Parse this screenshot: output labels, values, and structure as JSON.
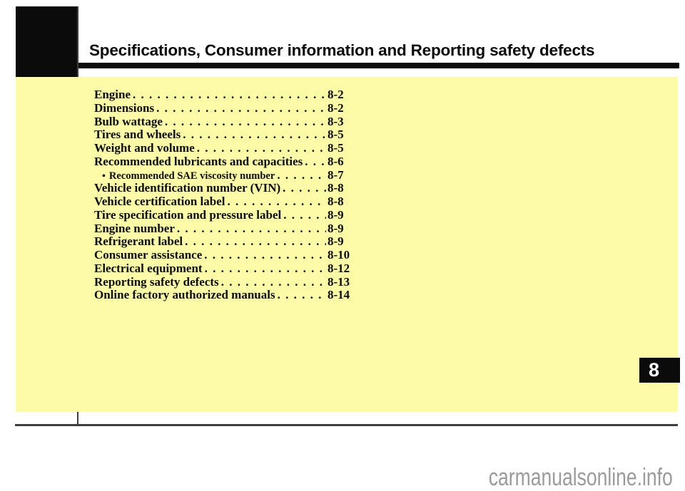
{
  "header": {
    "title": "Specifications, Consumer information and Reporting safety defects",
    "chapter_number": "8"
  },
  "toc": {
    "items": [
      {
        "label": "Engine",
        "page": "8-2"
      },
      {
        "label": "Dimensions",
        "page": "8-2"
      },
      {
        "label": "Bulb wattage",
        "page": "8-3"
      },
      {
        "label": "Tires and wheels",
        "page": "8-5"
      },
      {
        "label": "Weight and volume",
        "page": "8-5"
      },
      {
        "label": "Recommended lubricants and capacities",
        "page": "8-6"
      },
      {
        "label": "Recommended SAE viscosity number",
        "page": "8-7",
        "sub": true,
        "marker": "•"
      },
      {
        "label": "Vehicle identification number (VIN)",
        "page": "8-8"
      },
      {
        "label": "Vehicle certification label",
        "page": "8-8"
      },
      {
        "label": "Tire specification and pressure label",
        "page": "8-9"
      },
      {
        "label": "Engine number",
        "page": "8-9"
      },
      {
        "label": "Refrigerant label",
        "page": "8-9"
      },
      {
        "label": "Consumer assistance",
        "page": "8-10"
      },
      {
        "label": "Electrical equipment",
        "page": "8-12"
      },
      {
        "label": "Reporting safety defects",
        "page": "8-13"
      },
      {
        "label": "Online factory authorized manuals",
        "page": "8-14"
      }
    ]
  },
  "footer": {
    "watermark": "carmanualsonline.info"
  },
  "colors": {
    "panel_yellow": "#FCFCA6",
    "ink_black": "#0B0B0B",
    "rule_gray": "#3E3E3E",
    "watermark_gray": "#9B9B9B"
  }
}
